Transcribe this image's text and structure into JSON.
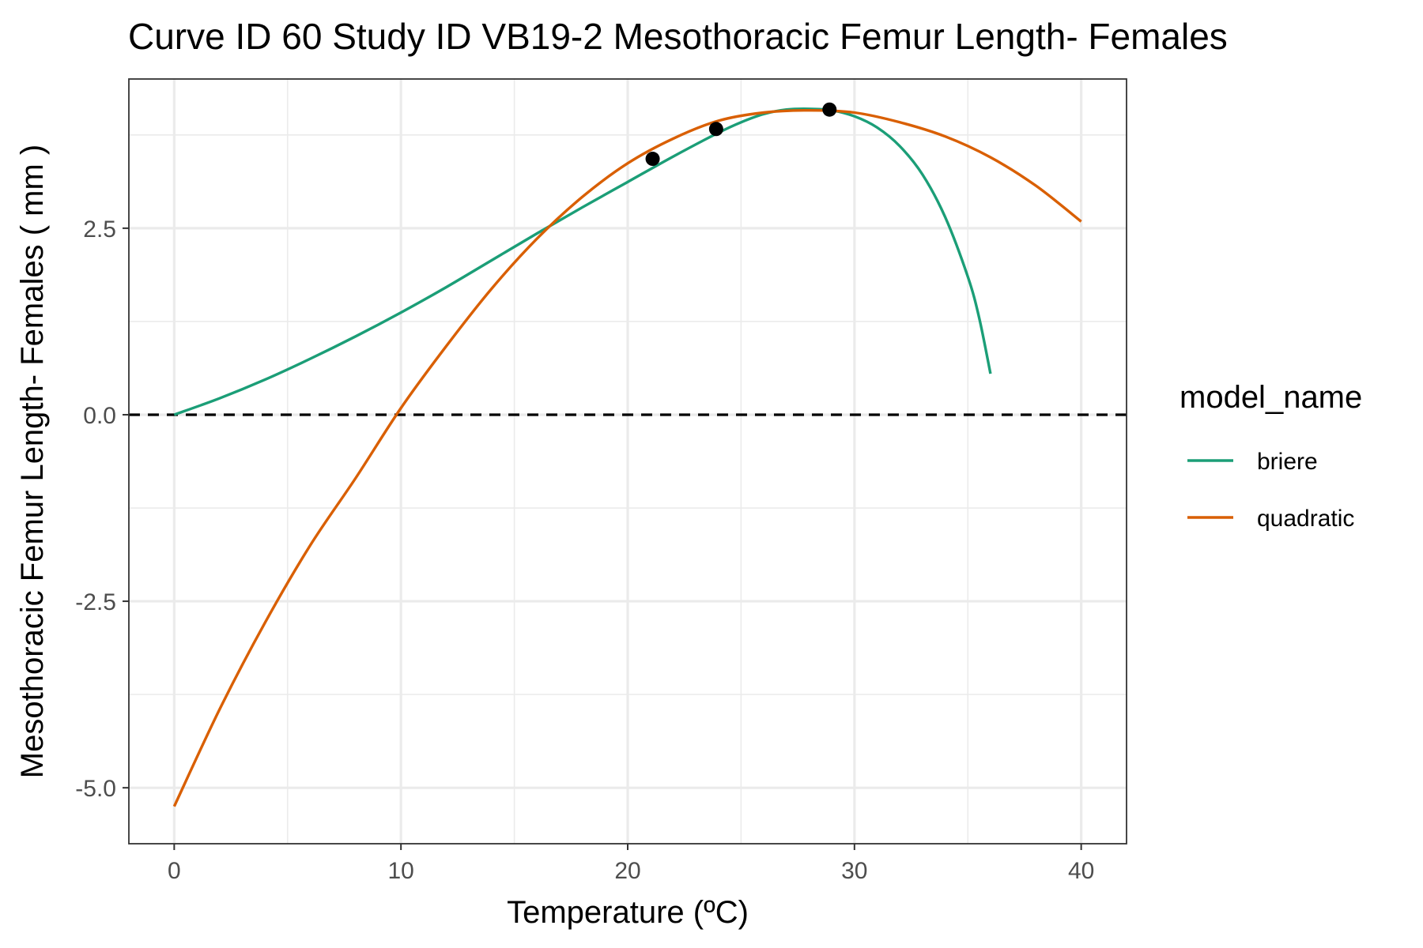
{
  "chart_data": {
    "type": "line",
    "title": "Curve ID 60 Study ID VB19-2 Mesothoracic Femur Length- Females",
    "xlabel": "Temperature (ºC)",
    "ylabel": "Mesothoracic Femur Length- Females ( mm )",
    "xlim": [
      -2,
      42
    ],
    "ylim": [
      -5.75,
      4.5
    ],
    "x_ticks": [
      0,
      10,
      20,
      30,
      40
    ],
    "x_tick_labels": [
      "0",
      "10",
      "20",
      "30",
      "40"
    ],
    "y_ticks": [
      -5.0,
      -2.5,
      0.0,
      2.5
    ],
    "y_tick_labels": [
      "-5.0",
      "-2.5",
      "0.0",
      "2.5"
    ],
    "grid": true,
    "reference_line": {
      "y": 0,
      "style": "dashed",
      "color": "#000000"
    },
    "legend": {
      "title": "model_name",
      "placement": "right"
    },
    "series": [
      {
        "name": "briere",
        "color": "#1b9e77",
        "x": [
          0,
          2,
          4,
          6,
          8,
          10,
          12,
          14,
          16,
          18,
          20,
          22,
          24,
          25,
          26,
          27,
          28,
          29,
          30,
          31,
          32,
          33,
          34,
          35,
          35.5,
          36
        ],
        "y": [
          0.0,
          0.22,
          0.47,
          0.75,
          1.05,
          1.37,
          1.71,
          2.07,
          2.43,
          2.78,
          3.12,
          3.46,
          3.78,
          3.92,
          4.03,
          4.09,
          4.1,
          4.08,
          4.0,
          3.85,
          3.6,
          3.22,
          2.65,
          1.85,
          1.3,
          0.55
        ]
      },
      {
        "name": "quadratic",
        "color": "#d95f02",
        "x": [
          0,
          2,
          4,
          6,
          8,
          10,
          12,
          14,
          16,
          18,
          20,
          22,
          24,
          26,
          28,
          30,
          32,
          34,
          36,
          38,
          40
        ],
        "y": [
          -5.25,
          -3.95,
          -2.79,
          -1.75,
          -0.85,
          0.09,
          0.92,
          1.69,
          2.36,
          2.92,
          3.37,
          3.7,
          3.94,
          4.05,
          4.08,
          4.05,
          3.92,
          3.73,
          3.45,
          3.07,
          2.59
        ]
      }
    ],
    "points": {
      "color": "#000000",
      "x": [
        21.1,
        23.9,
        28.9
      ],
      "y": [
        3.43,
        3.83,
        4.09
      ]
    }
  }
}
